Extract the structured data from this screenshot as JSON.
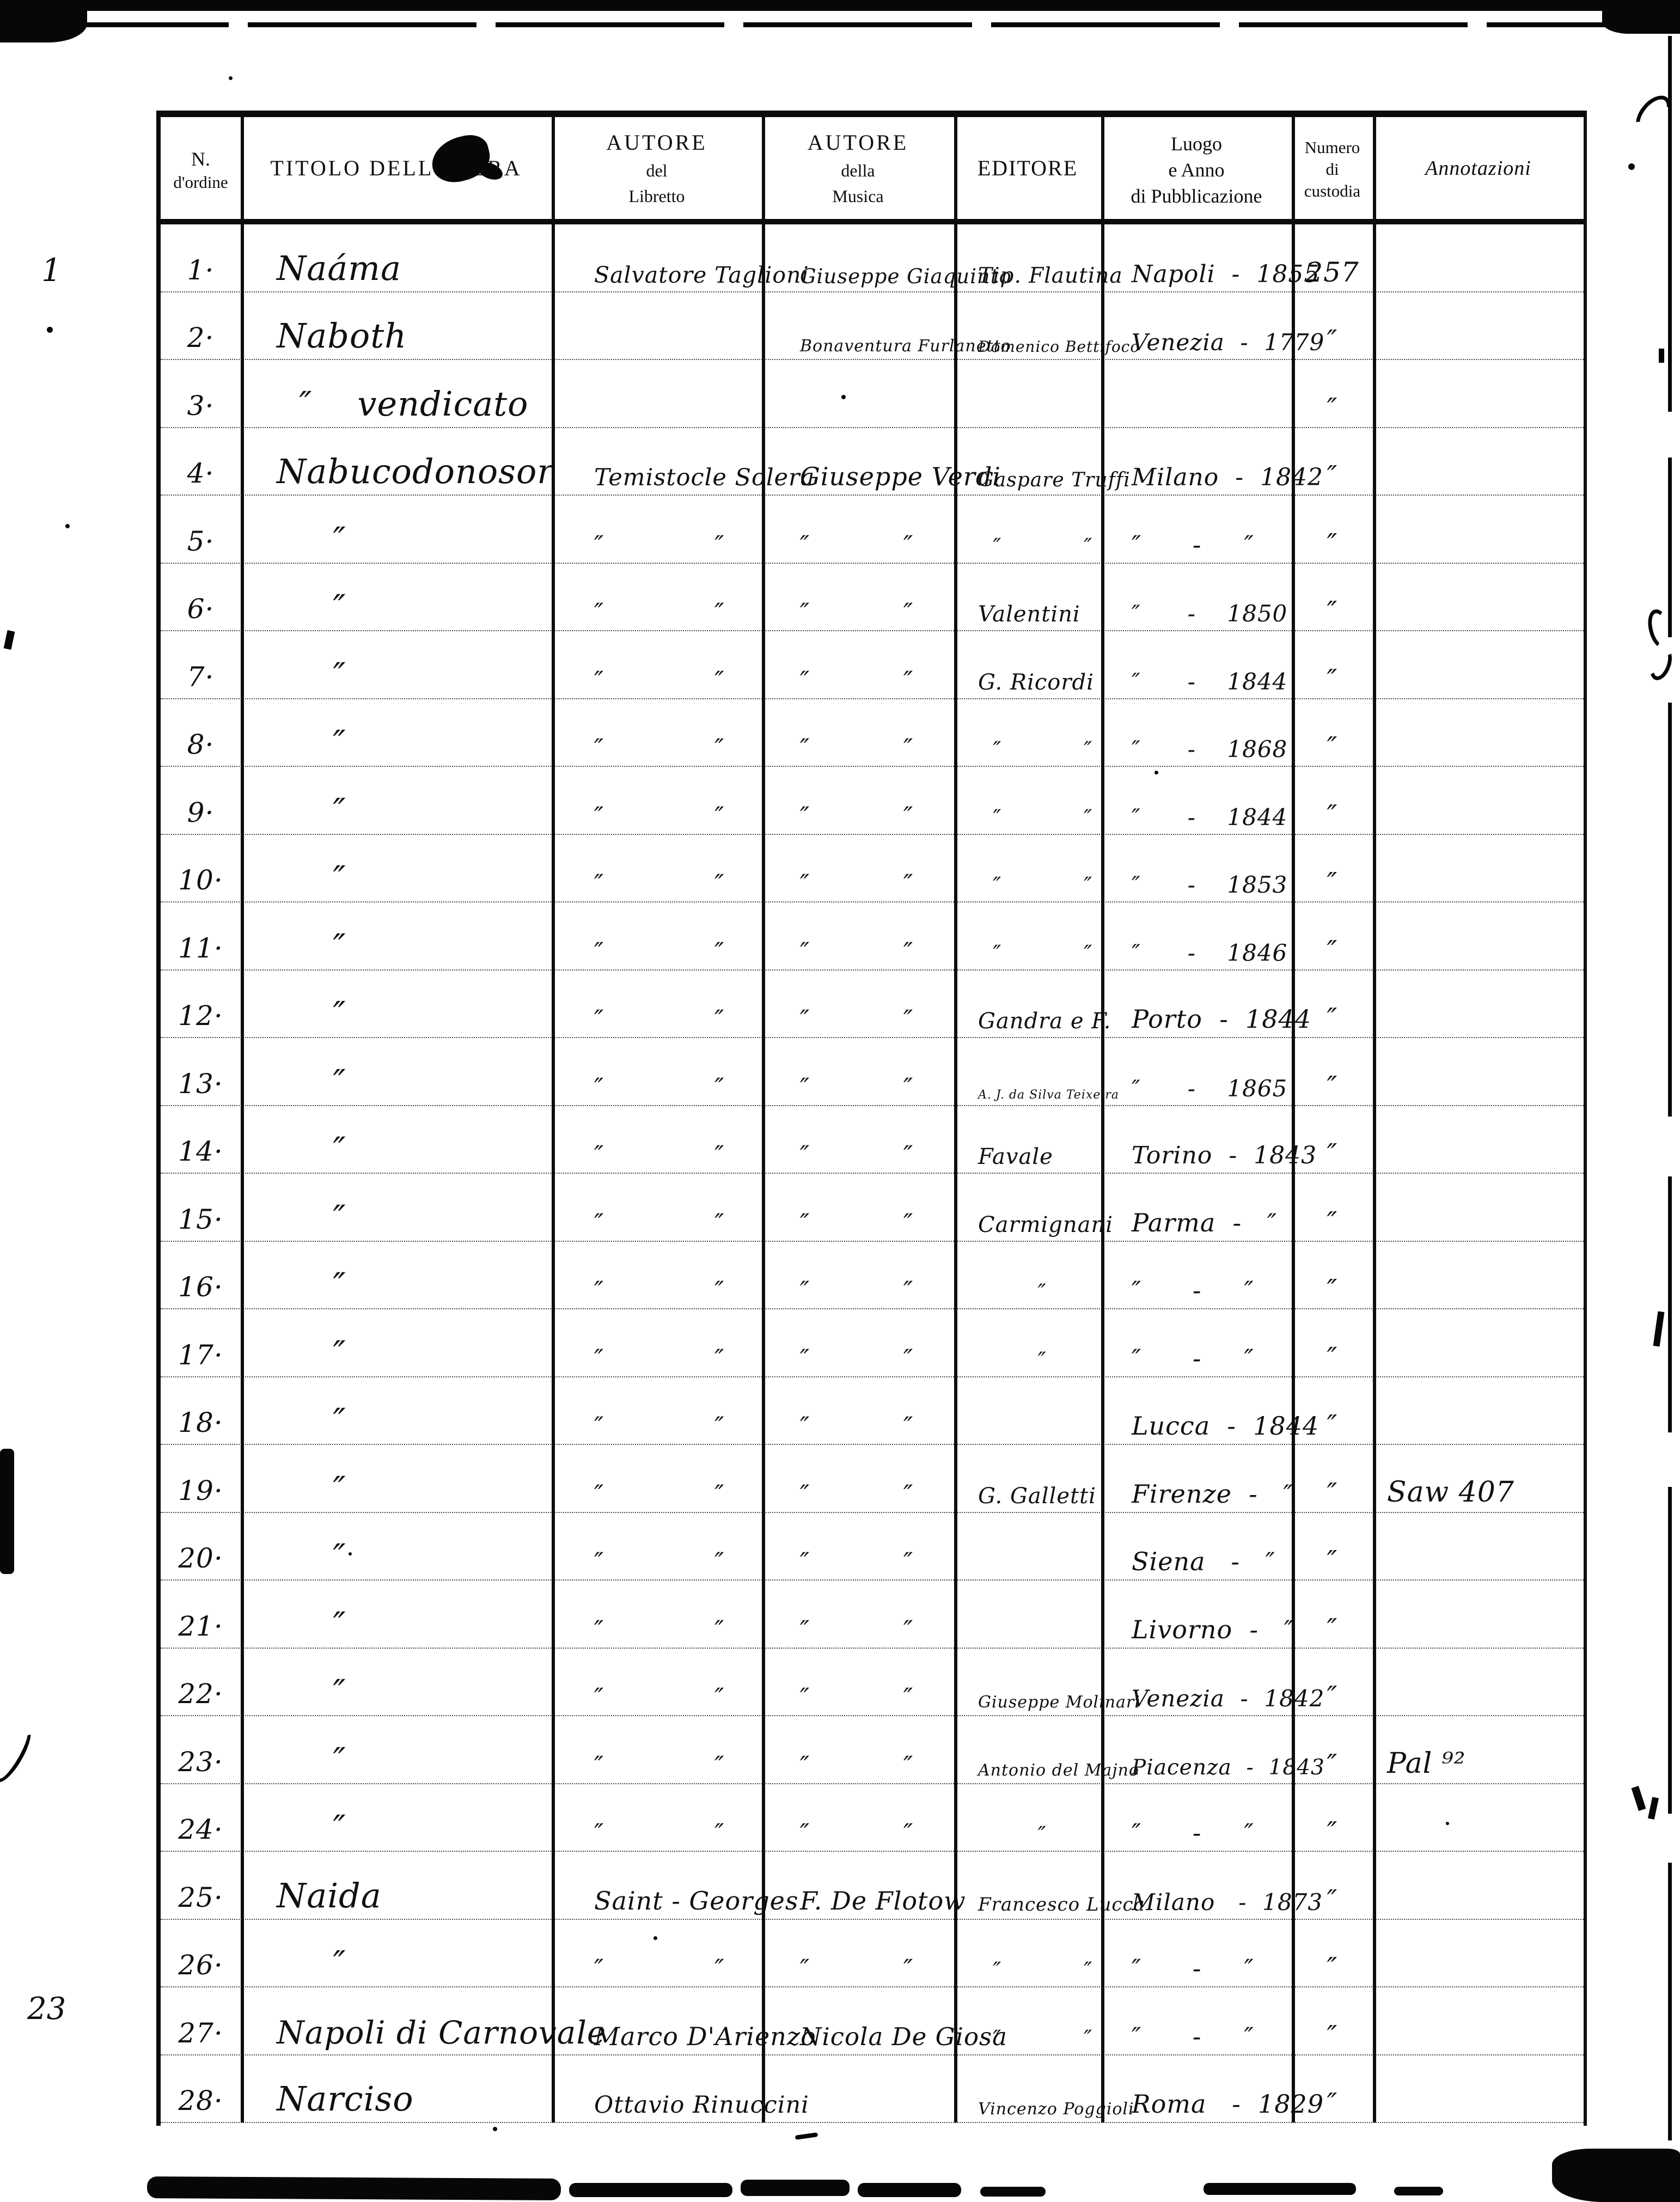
{
  "page": {
    "margin_top_number": "1",
    "margin_bottom_number": "23"
  },
  "table": {
    "headers": {
      "n": [
        "N.",
        "d'ordine"
      ],
      "titolo": "TITOLO DELL'OPERA",
      "libretto": [
        "AUTORE",
        "del",
        "Libretto"
      ],
      "musica": [
        "AUTORE",
        "della",
        "Musica"
      ],
      "editore": "EDITORE",
      "luogo": [
        "Luogo",
        "e Anno",
        "di Pubblicazione"
      ],
      "numero": [
        "Numero",
        "di",
        "custodia"
      ],
      "annotazioni": "Annotazioni"
    },
    "rows": [
      {
        "n": "1·",
        "titolo": "Naáma",
        "libretto": "Salvatore Taglioni",
        "musica": "Giuseppe Giaquinto",
        "editore": "Tip. Flautina",
        "luogo": "Napoli  -  1855",
        "numero": "257",
        "annot": ""
      },
      {
        "n": "2·",
        "titolo": "Naboth",
        "libretto": "",
        "musica": "Bonaventura Furlanetto",
        "editore": "Domenico Bettifoco",
        "luogo": "Venezia  -  1779",
        "numero": "″",
        "annot": ""
      },
      {
        "n": "3·",
        "titolo": "  ″    vendicato",
        "libretto": "",
        "musica": "",
        "editore": "",
        "luogo": "",
        "numero": "″",
        "annot": ""
      },
      {
        "n": "4·",
        "titolo": "Nabucodonosor",
        "libretto": "Temistocle Solera",
        "musica": "Giuseppe Verdi",
        "editore": "Gaspare Truffi",
        "luogo": "Milano  -  1842",
        "numero": "″",
        "annot": ""
      },
      {
        "n": "5·",
        "titolo": "     ″",
        "libretto": "″             ″",
        "musica": "″           ″",
        "editore": "  ″           ″",
        "luogo": "″      -     ″",
        "numero": "″",
        "annot": ""
      },
      {
        "n": "6·",
        "titolo": "     ″",
        "libretto": "″             ″",
        "musica": "″           ″",
        "editore": "Valentini",
        "luogo": "″      -    1850",
        "numero": "″",
        "annot": ""
      },
      {
        "n": "7·",
        "titolo": "     ″",
        "libretto": "″             ″",
        "musica": "″           ″",
        "editore": "G. Ricordi",
        "luogo": "″      -    1844",
        "numero": "″",
        "annot": ""
      },
      {
        "n": "8·",
        "titolo": "     ″",
        "libretto": "″             ″",
        "musica": "″           ″",
        "editore": "  ″           ″",
        "luogo": "″      -    1868",
        "numero": "″",
        "annot": ""
      },
      {
        "n": "9·",
        "titolo": "     ″",
        "libretto": "″             ″",
        "musica": "″           ″",
        "editore": "  ″           ″",
        "luogo": "″      -    1844",
        "numero": "″",
        "annot": ""
      },
      {
        "n": "10·",
        "titolo": "     ″",
        "libretto": "″             ″",
        "musica": "″           ″",
        "editore": "  ″           ″",
        "luogo": "″      -    1853",
        "numero": "″",
        "annot": ""
      },
      {
        "n": "11·",
        "titolo": "     ″",
        "libretto": "″             ″",
        "musica": "″           ″",
        "editore": "  ″           ″",
        "luogo": "″      -    1846",
        "numero": "″",
        "annot": ""
      },
      {
        "n": "12·",
        "titolo": "     ″",
        "libretto": "″             ″",
        "musica": "″           ″",
        "editore": "Gandra e F.",
        "luogo": "Porto  -  1844",
        "numero": "″",
        "annot": ""
      },
      {
        "n": "13·",
        "titolo": "     ″",
        "libretto": "″             ″",
        "musica": "″           ″",
        "editore": "A. J. da Silva Teixeira",
        "luogo": "″      -    1865",
        "numero": "″",
        "annot": ""
      },
      {
        "n": "14·",
        "titolo": "     ″",
        "libretto": "″             ″",
        "musica": "″           ″",
        "editore": "Favale",
        "luogo": "Torino  -  1843",
        "numero": "″",
        "annot": ""
      },
      {
        "n": "15·",
        "titolo": "     ″",
        "libretto": "″             ″",
        "musica": "″           ″",
        "editore": "Carmignani",
        "luogo": "Parma  -   ″",
        "numero": "″",
        "annot": ""
      },
      {
        "n": "16·",
        "titolo": "     ″",
        "libretto": "″             ″",
        "musica": "″           ″",
        "editore": "        ″",
        "luogo": "″      -     ″",
        "numero": "″",
        "annot": ""
      },
      {
        "n": "17·",
        "titolo": "     ″",
        "libretto": "″             ″",
        "musica": "″           ″",
        "editore": "        ″",
        "luogo": "″      -     ″",
        "numero": "″",
        "annot": ""
      },
      {
        "n": "18·",
        "titolo": "     ″",
        "libretto": "″             ″",
        "musica": "″           ″",
        "editore": "",
        "luogo": "Lucca  -  1844",
        "numero": "″",
        "annot": ""
      },
      {
        "n": "19·",
        "titolo": "     ″",
        "libretto": "″             ″",
        "musica": "″           ″",
        "editore": "G. Galletti",
        "luogo": "Firenze  -   ″",
        "numero": "″",
        "annot": "Saw 407"
      },
      {
        "n": "20·",
        "titolo": "     ″",
        "libretto": "″             ″",
        "musica": "″           ″",
        "editore": "",
        "luogo": "Siena   -   ″",
        "numero": "″",
        "annot": ""
      },
      {
        "n": "21·",
        "titolo": "     ″",
        "libretto": "″             ″",
        "musica": "″           ″",
        "editore": "",
        "luogo": "Livorno  -   ″",
        "numero": "″",
        "annot": ""
      },
      {
        "n": "22·",
        "titolo": "     ″",
        "libretto": "″             ″",
        "musica": "″           ″",
        "editore": "Giuseppe Molinari",
        "luogo": "Venezia  -  1842",
        "numero": "″",
        "annot": ""
      },
      {
        "n": "23·",
        "titolo": "     ″",
        "libretto": "″             ″",
        "musica": "″           ″",
        "editore": "Antonio del Majno",
        "luogo": "Piacenza  -  1843",
        "numero": "″",
        "annot": "Pal ⁹²"
      },
      {
        "n": "24·",
        "titolo": "     ″",
        "libretto": "″             ″",
        "musica": "″           ″",
        "editore": "        ″",
        "luogo": "″      -     ″",
        "numero": "″",
        "annot": ""
      },
      {
        "n": "25·",
        "titolo": "Naida",
        "libretto": "Saint - Georges",
        "musica": "F. De Flotow",
        "editore": "Francesco Lucca",
        "luogo": "Milano   -  1873",
        "numero": "″",
        "annot": ""
      },
      {
        "n": "26·",
        "titolo": "     ″",
        "libretto": "″             ″",
        "musica": "″           ″",
        "editore": "  ″           ″",
        "luogo": "″      -     ″",
        "numero": "″",
        "annot": ""
      },
      {
        "n": "27·",
        "titolo": "Napoli di Carnovale",
        "libretto": "Marco D'Arienzo",
        "musica": "Nicola De Giosa",
        "editore": "  ″           ″",
        "luogo": "″      -     ″",
        "numero": "″",
        "annot": ""
      },
      {
        "n": "28·",
        "titolo": "Narciso",
        "libretto": "Ottavio Rinuccini",
        "musica": "",
        "editore": "Vincenzo Poggioli",
        "luogo": "Roma   -  1829",
        "numero": "″",
        "annot": ""
      }
    ]
  },
  "ink_color": "#0d0d0d"
}
